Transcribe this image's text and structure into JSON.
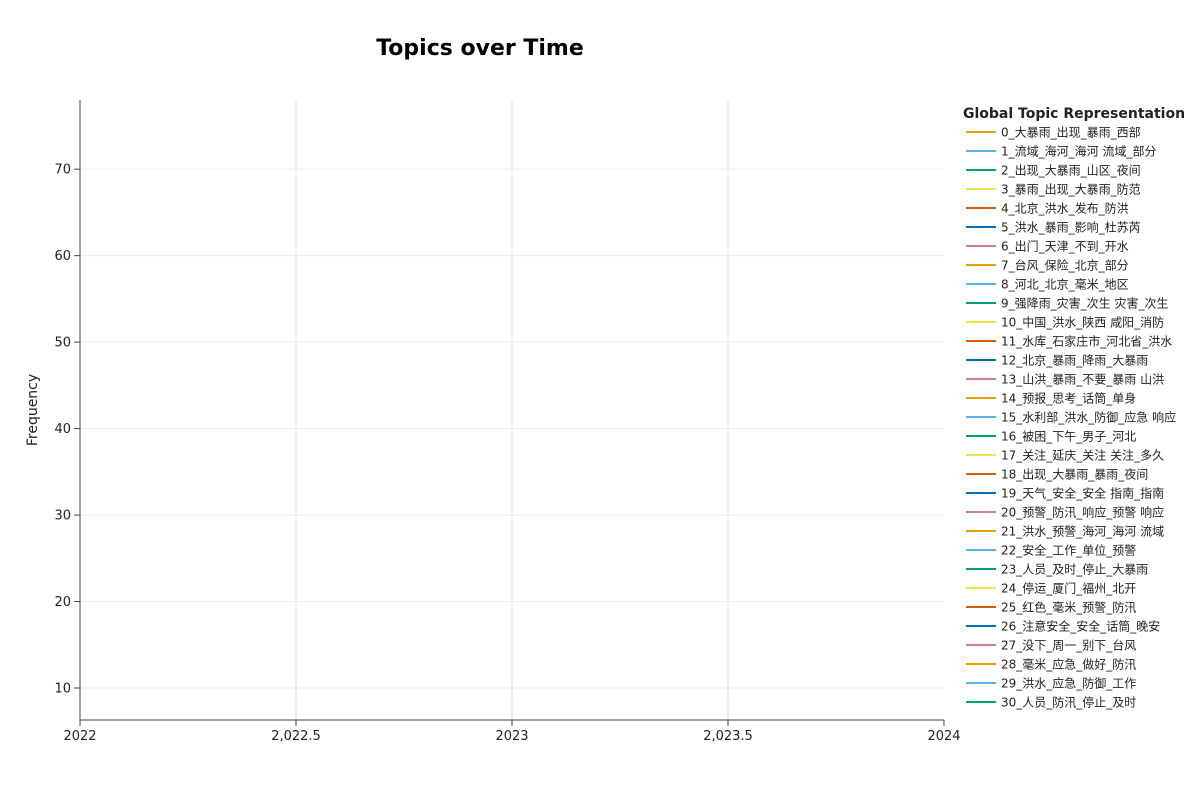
{
  "chart_data": {
    "type": "line",
    "title": "Topics over Time",
    "ylabel": "Frequency",
    "xlabel": "",
    "xlim": [
      2022,
      2024
    ],
    "ylim": [
      6.3,
      78
    ],
    "x_ticks": [
      2022,
      2022.5,
      2023,
      2023.5,
      2024
    ],
    "x_tick_labels": [
      "2022",
      "2,022.5",
      "2023",
      "2,023.5",
      "2024"
    ],
    "y_ticks": [
      10,
      20,
      30,
      40,
      50,
      60,
      70
    ],
    "y_tick_labels": [
      "10",
      "20",
      "30",
      "40",
      "50",
      "60",
      "70"
    ],
    "grid": true,
    "legend": {
      "title": "Global Topic Representation",
      "placement": "right",
      "items": [
        {
          "label": "0_大暴雨_出现_暴雨_西部",
          "color": "#E69F00"
        },
        {
          "label": "1_流域_海河_海河 流域_部分",
          "color": "#56B4E9"
        },
        {
          "label": "2_出现_大暴雨_山区_夜间",
          "color": "#009E73"
        },
        {
          "label": "3_暴雨_出现_大暴雨_防范",
          "color": "#F0E442"
        },
        {
          "label": "4_北京_洪水_发布_防洪",
          "color": "#D55E00"
        },
        {
          "label": "5_洪水_暴雨_影响_杜苏芮",
          "color": "#0072B2"
        },
        {
          "label": "6_出门_天津_不到_开水",
          "color": "#CC79A7"
        },
        {
          "label": "7_台风_保险_北京_部分",
          "color": "#E69F00"
        },
        {
          "label": "8_河北_北京_毫米_地区",
          "color": "#56B4E9"
        },
        {
          "label": "9_强降雨_灾害_次生 灾害_次生",
          "color": "#009E73"
        },
        {
          "label": "10_中国_洪水_陕西 咸阳_消防",
          "color": "#F0E442"
        },
        {
          "label": "11_水库_石家庄市_河北省_洪水",
          "color": "#D55E00"
        },
        {
          "label": "12_北京_暴雨_降雨_大暴雨",
          "color": "#0072B2"
        },
        {
          "label": "13_山洪_暴雨_不要_暴雨 山洪",
          "color": "#CC79A7"
        },
        {
          "label": "14_预报_思考_话筒_单身",
          "color": "#E69F00"
        },
        {
          "label": "15_水利部_洪水_防御_应急 响应",
          "color": "#56B4E9"
        },
        {
          "label": "16_被困_下午_男子_河北",
          "color": "#009E73"
        },
        {
          "label": "17_关注_延庆_关注 关注_多久",
          "color": "#F0E442"
        },
        {
          "label": "18_出现_大暴雨_暴雨_夜间",
          "color": "#D55E00"
        },
        {
          "label": "19_天气_安全_安全 指南_指南",
          "color": "#0072B2"
        },
        {
          "label": "20_预警_防汛_响应_预警 响应",
          "color": "#CC79A7"
        },
        {
          "label": "21_洪水_预警_海河_海河 流域",
          "color": "#E69F00"
        },
        {
          "label": "22_安全_工作_单位_预警",
          "color": "#56B4E9"
        },
        {
          "label": "23_人员_及时_停止_大暴雨",
          "color": "#009E73"
        },
        {
          "label": "24_停运_厦门_福州_北开",
          "color": "#F0E442"
        },
        {
          "label": "25_红色_毫米_预警_防汛",
          "color": "#D55E00"
        },
        {
          "label": "26_注意安全_安全_话筒_晚安",
          "color": "#0072B2"
        },
        {
          "label": "27_没下_周一_别下_台风",
          "color": "#CC79A7"
        },
        {
          "label": "28_毫米_应急_做好_防汛",
          "color": "#E69F00"
        },
        {
          "label": "29_洪水_应急_防御_工作",
          "color": "#56B4E9"
        },
        {
          "label": "30_人员_防汛_停止_及时",
          "color": "#009E73"
        }
      ]
    },
    "series": []
  }
}
